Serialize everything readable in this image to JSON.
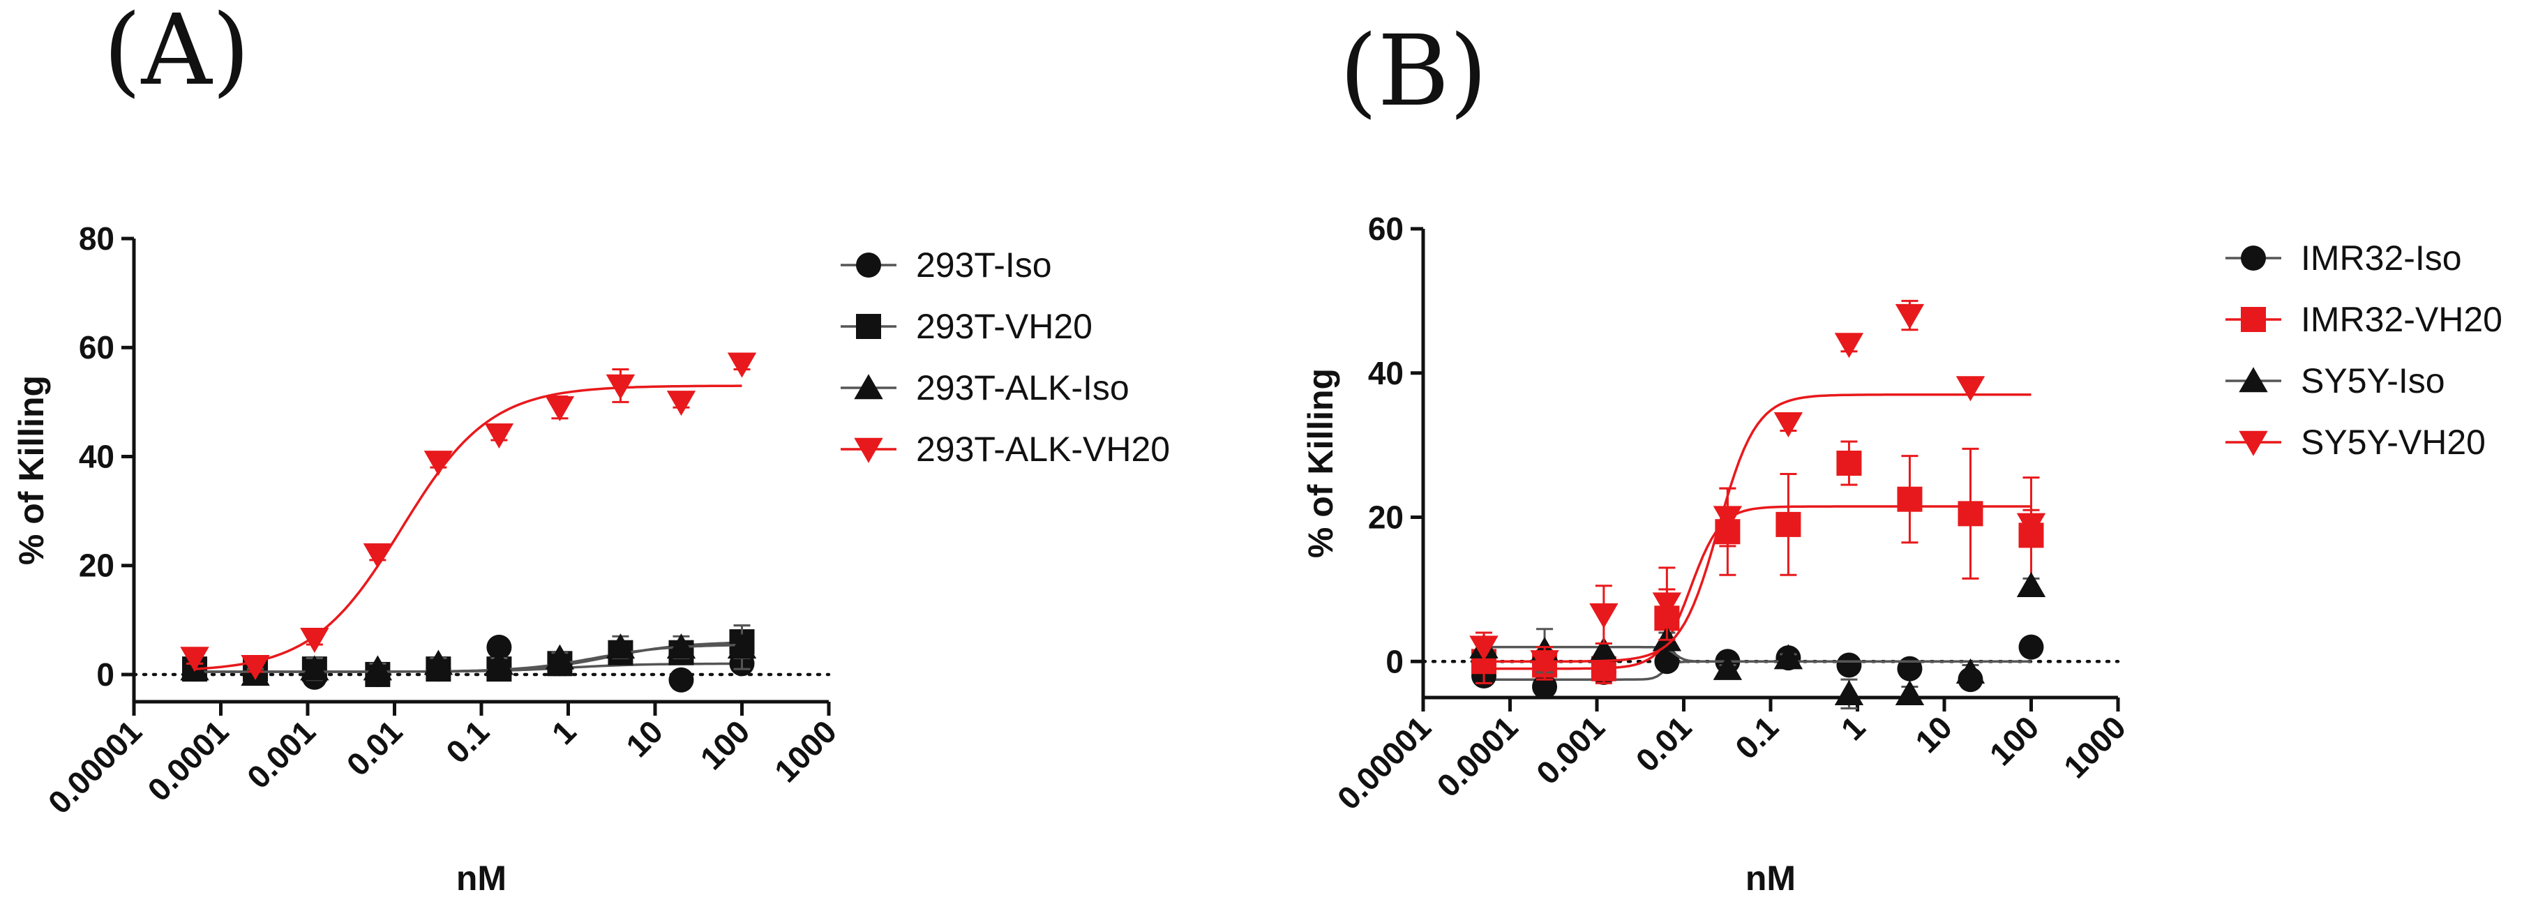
{
  "colors": {
    "black": "#111111",
    "red": "#e8191c",
    "grey": "#555555"
  },
  "chart_data": [
    {
      "type": "scatter",
      "panel_label": "(A)",
      "xlabel": "nM",
      "ylabel": "% of Killing",
      "xscale": "log",
      "xlim": [
        1e-05,
        1000
      ],
      "ylim": [
        -5,
        80
      ],
      "x_tick_labels": [
        "0.00001",
        "0.0001",
        "0.001",
        "0.01",
        "0.1",
        "1",
        "10",
        "100",
        "1000"
      ],
      "y_ticks": [
        0,
        20,
        40,
        60,
        80
      ],
      "y_tick_labels": [
        "0",
        "20",
        "40",
        "60",
        "80"
      ],
      "reference_line": 0,
      "legend_position": "right",
      "series": [
        {
          "name": "293T-Iso",
          "marker": "circle",
          "color": "#111111",
          "x": [
            5e-05,
            0.00025,
            0.0012,
            0.0064,
            0.032,
            0.16,
            0.8,
            4,
            20,
            100
          ],
          "y": [
            1,
            0.5,
            -0.5,
            0,
            1,
            5,
            2,
            4,
            -1,
            2
          ],
          "err": [
            1,
            1,
            1,
            1,
            1,
            1,
            1,
            2,
            1,
            1
          ],
          "fit": {
            "bottom": 0.5,
            "top": 2,
            "ec50": 1,
            "hill": 1
          }
        },
        {
          "name": "293T-VH20",
          "marker": "square",
          "color": "#111111",
          "x": [
            5e-05,
            0.00025,
            0.0012,
            0.0064,
            0.032,
            0.16,
            0.8,
            4,
            20,
            100
          ],
          "y": [
            1,
            1,
            1,
            0,
            1,
            1,
            2,
            4,
            4,
            6
          ],
          "err": [
            1,
            1,
            1,
            1,
            1,
            1,
            1,
            2,
            2,
            3
          ],
          "fit": {
            "bottom": 0.5,
            "top": 6,
            "ec50": 3,
            "hill": 1
          }
        },
        {
          "name": "293T-ALK-Iso",
          "marker": "triangle-up",
          "color": "#111111",
          "x": [
            5e-05,
            0.00025,
            0.0012,
            0.0064,
            0.032,
            0.16,
            0.8,
            4,
            20,
            100
          ],
          "y": [
            1,
            0,
            1,
            1,
            2,
            2,
            3,
            5,
            5,
            5
          ],
          "err": [
            1,
            1,
            2,
            1,
            1,
            1,
            1,
            2,
            2,
            4
          ],
          "fit": {
            "bottom": 0.5,
            "top": 5.5,
            "ec50": 2,
            "hill": 1
          }
        },
        {
          "name": "293T-ALK-VH20",
          "marker": "triangle-down",
          "color": "#e8191c",
          "x": [
            5e-05,
            0.00025,
            0.0012,
            0.0064,
            0.032,
            0.16,
            0.8,
            4,
            20,
            100
          ],
          "y": [
            3,
            1.5,
            6.5,
            22,
            39,
            44,
            49,
            53,
            50,
            57
          ],
          "err": [
            1,
            1,
            1,
            1,
            1,
            1,
            2,
            3,
            1,
            1
          ],
          "fit": {
            "bottom": 0.5,
            "top": 53,
            "ec50": 0.012,
            "hill": 0.85
          }
        }
      ]
    },
    {
      "type": "scatter",
      "panel_label": "(B)",
      "xlabel": "nM",
      "ylabel": "% of Killing",
      "xscale": "log",
      "xlim": [
        1e-05,
        1000
      ],
      "ylim": [
        -5,
        60
      ],
      "x_tick_labels": [
        "0.00001",
        "0.0001",
        "0.001",
        "0.01",
        "0.1",
        "1",
        "10",
        "100",
        "1000"
      ],
      "y_ticks": [
        0,
        20,
        40,
        60
      ],
      "y_tick_labels": [
        "0",
        "20",
        "40",
        "60"
      ],
      "reference_line": 0,
      "legend_position": "right",
      "series": [
        {
          "name": "IMR32-Iso",
          "marker": "circle",
          "color": "#111111",
          "x": [
            5e-05,
            0.00025,
            0.0012,
            0.0064,
            0.032,
            0.16,
            0.8,
            4,
            20,
            100
          ],
          "y": [
            -2,
            -3.5,
            -1.5,
            0,
            0,
            0.5,
            -0.5,
            -1,
            -2.5,
            2
          ],
          "err": [
            1,
            1,
            1,
            1,
            0.5,
            0.5,
            1,
            1,
            1,
            0.5
          ],
          "fit": {
            "bottom": -2.5,
            "top": 0,
            "ec50": 0.006,
            "hill": 8
          }
        },
        {
          "name": "IMR32-VH20",
          "marker": "square",
          "color": "#e8191c",
          "x": [
            5e-05,
            0.00025,
            0.0012,
            0.0064,
            0.032,
            0.16,
            0.8,
            4,
            20,
            100
          ],
          "y": [
            0,
            -0.5,
            -1,
            6,
            18,
            19,
            27.5,
            22.5,
            20.5,
            17.5
          ],
          "err": [
            3,
            2,
            2,
            4,
            6,
            7,
            3,
            6,
            9,
            8
          ],
          "fit": {
            "bottom": -1,
            "top": 21.5,
            "ec50": 0.012,
            "hill": 2.5
          }
        },
        {
          "name": "SY5Y-Iso",
          "marker": "triangle-up",
          "color": "#111111",
          "x": [
            5e-05,
            0.00025,
            0.0012,
            0.0064,
            0.032,
            0.16,
            0.8,
            4,
            20,
            100
          ],
          "y": [
            2,
            1.5,
            1.5,
            3,
            -1,
            0.5,
            -4.5,
            -4.5,
            -1.5,
            10.5
          ],
          "err": [
            1,
            3,
            1,
            1,
            0.5,
            0.5,
            2,
            1,
            1,
            1
          ],
          "fit": {
            "bottom": 2,
            "top": 0,
            "ec50": 0.008,
            "hill": 8
          }
        },
        {
          "name": "SY5Y-VH20",
          "marker": "triangle-down",
          "color": "#e8191c",
          "x": [
            5e-05,
            0.00025,
            0.0012,
            0.0064,
            0.032,
            0.16,
            0.8,
            4,
            20,
            100
          ],
          "y": [
            2,
            0,
            6.5,
            8,
            20,
            33,
            44,
            48,
            38,
            19
          ],
          "err": [
            2,
            2,
            4,
            5,
            4,
            1,
            1,
            2,
            1,
            2
          ],
          "fit": {
            "bottom": 0,
            "top": 37,
            "ec50": 0.025,
            "hill": 2
          }
        }
      ]
    }
  ]
}
